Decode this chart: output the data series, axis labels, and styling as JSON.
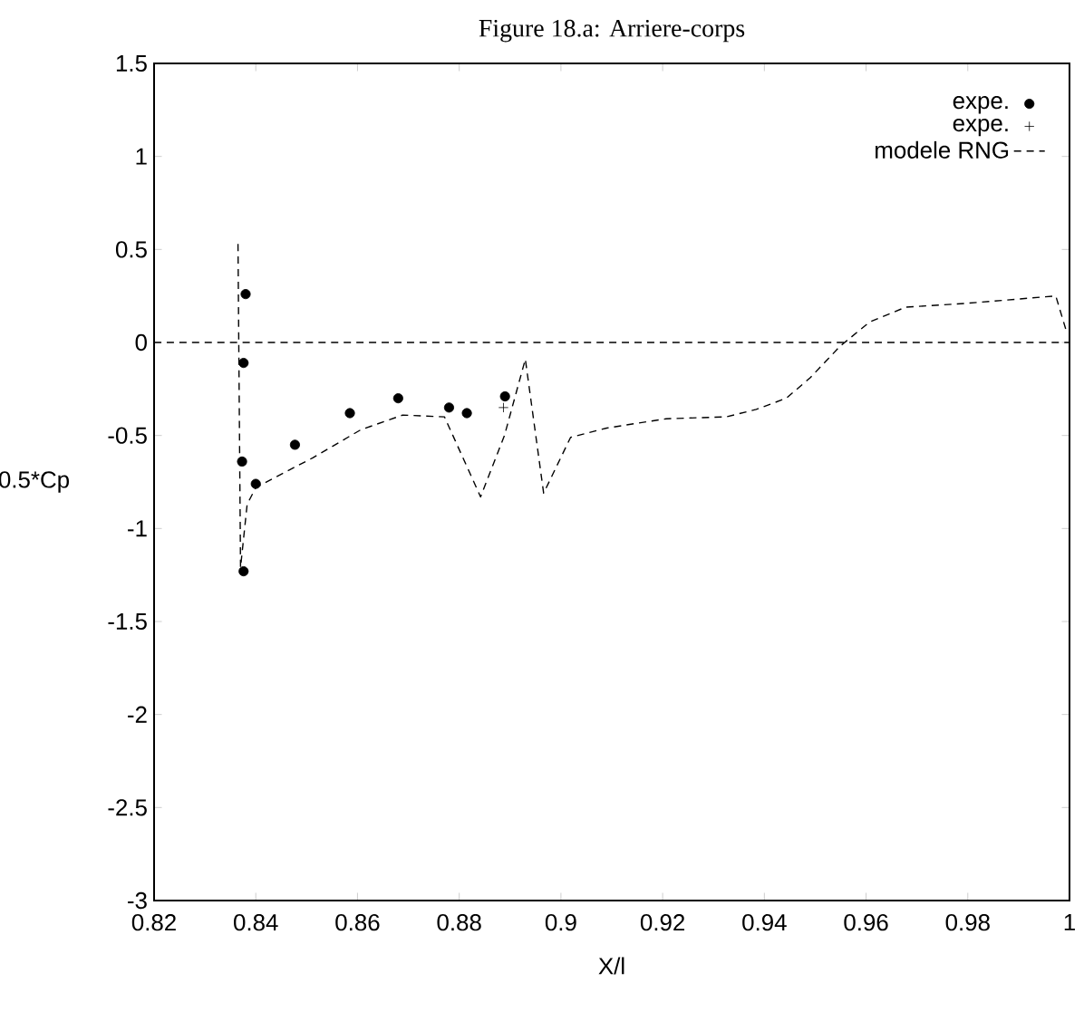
{
  "chart_data": {
    "type": "line",
    "title": "Figure 18.a: Arriere-corps",
    "xlabel": "X/l",
    "ylabel": "0.5*Cp",
    "xlim": [
      0.82,
      1
    ],
    "ylim": [
      -3,
      1.5
    ],
    "xticks": [
      0.82,
      0.84,
      0.86,
      0.88,
      0.9,
      0.92,
      0.94,
      0.96,
      0.98,
      1
    ],
    "yticks": [
      -3,
      -2.5,
      -2,
      -1.5,
      -1,
      -0.5,
      0,
      0.5,
      1,
      1.5
    ],
    "grid": false,
    "legend": "top right",
    "series": [
      {
        "name": "expe.",
        "type": "scatter",
        "marker": "circle",
        "color": "#000000",
        "x": [
          0.838,
          0.8376,
          0.8373,
          0.8376,
          0.84,
          0.8477,
          0.8585,
          0.868,
          0.878,
          0.8815,
          0.889
        ],
        "values": [
          0.26,
          -0.11,
          -0.64,
          -1.23,
          -0.76,
          -0.55,
          -0.38,
          -0.3,
          -0.35,
          -0.38,
          -0.29
        ]
      },
      {
        "name": "expe.",
        "type": "scatter",
        "marker": "cross",
        "color": "#000000",
        "x": [
          0.8887
        ],
        "values": [
          -0.35
        ]
      },
      {
        "name": "modele RNG",
        "type": "line",
        "marker": "none",
        "line_style": "dashed",
        "color": "#000000",
        "x": [
          0.8365,
          0.837,
          0.8383,
          0.84,
          0.8512,
          0.8606,
          0.8689,
          0.8771,
          0.8842,
          0.8889,
          0.893,
          0.8966,
          0.9019,
          0.909,
          0.9207,
          0.9325,
          0.9384,
          0.9443,
          0.949,
          0.9549,
          0.9607,
          0.9678,
          0.9796,
          0.9973,
          0.9995
        ],
        "values": [
          0.53,
          -1.21,
          -0.87,
          -0.78,
          -0.62,
          -0.47,
          -0.39,
          -0.4,
          -0.83,
          -0.5,
          -0.09,
          -0.81,
          -0.51,
          -0.46,
          -0.41,
          -0.4,
          -0.36,
          -0.3,
          -0.19,
          -0.02,
          0.11,
          0.19,
          0.21,
          0.25,
          0.05
        ]
      }
    ],
    "ref_lines": [
      {
        "axis": "y",
        "value": 0,
        "line_style": "dashed",
        "color": "#000000"
      }
    ]
  }
}
